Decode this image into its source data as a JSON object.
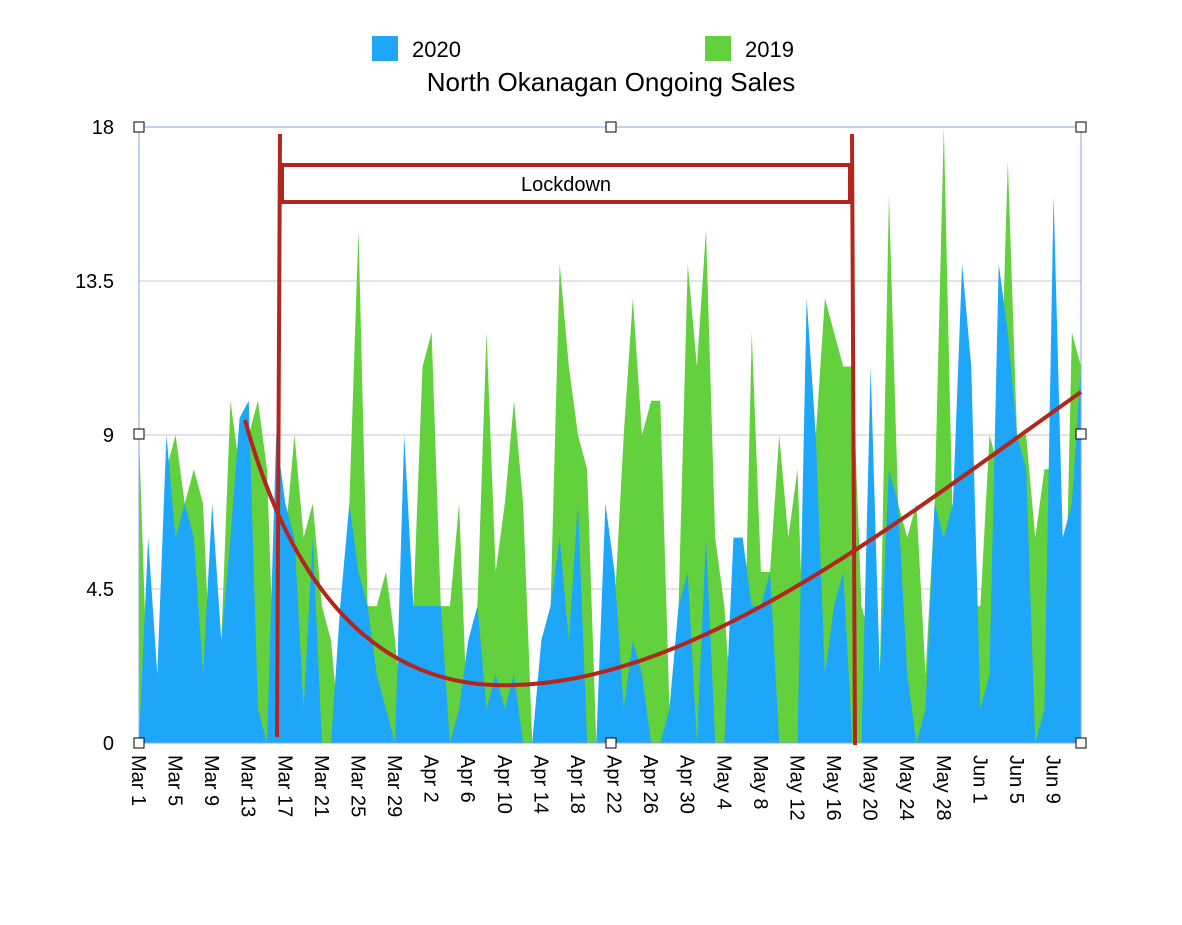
{
  "chart_data": {
    "type": "area",
    "title": "North Okanagan Ongoing Sales",
    "annotations": [
      "Lockdown"
    ],
    "categories": [
      "Mar 1",
      null,
      null,
      null,
      "Mar 5",
      null,
      null,
      null,
      "Mar 9",
      null,
      null,
      null,
      "Mar 13",
      null,
      null,
      null,
      "Mar 17",
      null,
      null,
      null,
      "Mar 21",
      null,
      null,
      null,
      "Mar 25",
      null,
      null,
      null,
      "Mar 29",
      null,
      null,
      null,
      "Apr 2",
      null,
      null,
      null,
      "Apr 6",
      null,
      null,
      null,
      "Apr 10",
      null,
      null,
      null,
      "Apr 14",
      null,
      null,
      null,
      "Apr 18",
      null,
      null,
      null,
      "Apr 22",
      null,
      null,
      null,
      "Apr 26",
      null,
      null,
      null,
      "Apr 30",
      null,
      null,
      null,
      "May 4",
      null,
      null,
      null,
      "May 8",
      null,
      null,
      null,
      "May 12",
      null,
      null,
      null,
      "May 16",
      null,
      null,
      null,
      "May 20",
      null,
      null,
      null,
      "May 24",
      null,
      null,
      null,
      "May 28",
      null,
      null,
      null,
      "Jun 1",
      null,
      null,
      null,
      "Jun 5",
      null,
      null,
      null,
      "Jun 9",
      null,
      null,
      null
    ],
    "series": [
      {
        "name": "2020",
        "color": "#1ea6f9",
        "values": [
          0,
          6,
          2,
          9,
          6,
          7,
          6,
          2,
          7,
          3,
          6,
          9.5,
          10,
          1,
          0,
          9,
          7,
          6,
          1,
          6,
          0,
          0,
          4,
          7,
          5,
          4,
          2,
          1,
          0,
          9,
          4,
          4,
          4,
          4,
          0,
          1,
          3,
          4,
          1,
          2,
          1,
          2,
          0,
          0,
          3,
          4,
          6,
          3,
          7,
          0,
          0,
          7,
          5,
          1,
          3,
          2,
          0,
          0,
          1,
          4,
          5,
          0,
          6,
          0,
          0,
          6,
          6,
          4,
          4,
          5,
          0,
          0,
          0,
          13,
          9,
          2,
          4,
          5,
          0,
          0,
          11,
          2,
          8,
          7,
          2,
          0,
          1,
          7,
          6,
          7,
          14,
          11,
          1,
          2,
          14,
          12,
          9,
          8,
          0,
          1,
          16,
          6,
          7,
          11
        ]
      },
      {
        "name": "2019",
        "color": "#63d13e",
        "values": [
          9,
          1,
          2,
          8,
          9,
          7,
          8,
          7,
          1,
          3,
          10,
          8,
          9,
          10,
          8,
          0,
          6,
          9,
          6,
          7,
          4,
          3,
          0,
          7,
          15,
          4,
          4,
          5,
          3,
          0,
          4,
          11,
          12,
          4,
          4,
          7,
          0,
          4,
          12,
          5,
          7,
          10,
          7,
          0,
          3,
          4,
          14,
          11,
          9,
          8,
          0,
          0,
          4,
          9,
          13,
          9,
          10,
          10,
          1,
          4,
          14,
          11,
          15,
          6,
          4,
          0,
          0,
          12,
          5,
          5,
          9,
          6,
          8,
          0,
          9,
          13,
          12,
          11,
          11,
          4,
          3,
          2,
          16,
          7,
          6,
          7,
          2,
          7,
          18,
          6,
          10,
          4,
          4,
          9,
          8,
          17,
          9,
          9,
          6,
          8,
          8,
          0,
          12,
          11
        ]
      }
    ],
    "ylim": [
      0,
      18
    ],
    "yticks": [
      0,
      4.5,
      9,
      13.5,
      18
    ],
    "grid": true
  }
}
